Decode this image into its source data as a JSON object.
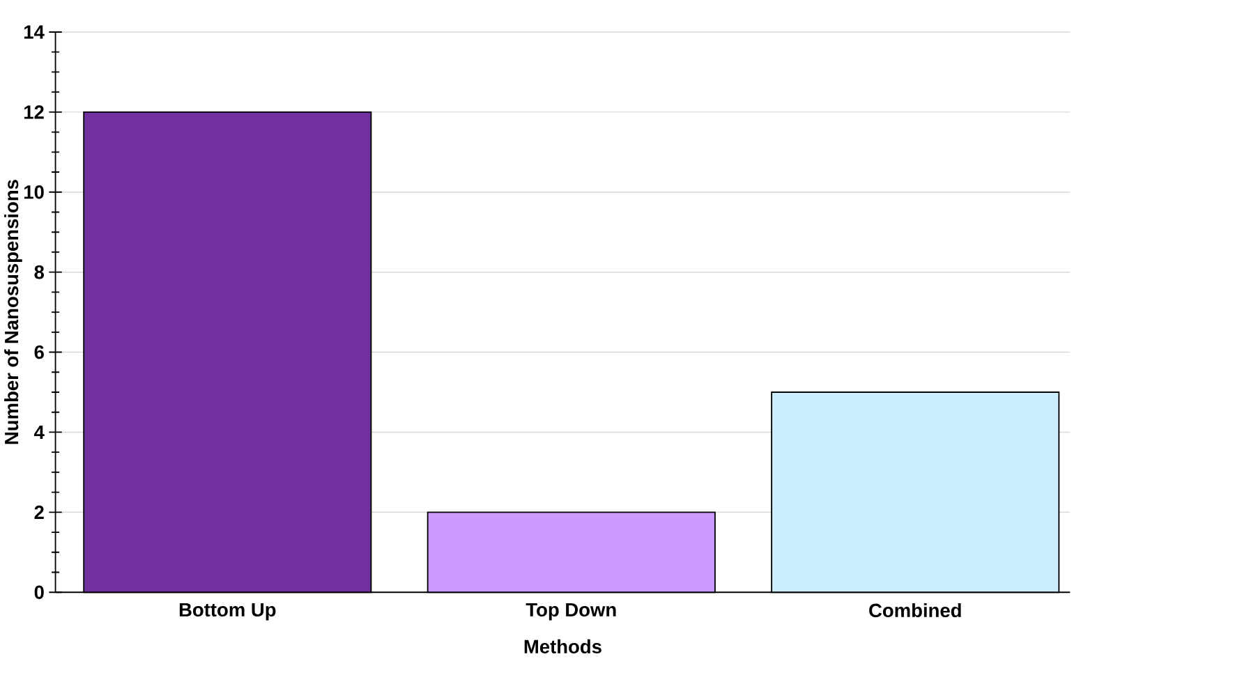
{
  "chart_data": {
    "type": "bar",
    "xlabel": "Methods",
    "ylabel": "Number of Nanosuspensions",
    "categories": [
      "Bottom Up",
      "Top Down",
      "Combined"
    ],
    "values": [
      12,
      2,
      5
    ],
    "colors": [
      "#7030a0",
      "#cc99ff",
      "#cceeff"
    ],
    "ylim": [
      0,
      14
    ],
    "yticks": [
      0,
      2,
      4,
      6,
      8,
      10,
      12,
      14
    ],
    "grid": "y"
  }
}
